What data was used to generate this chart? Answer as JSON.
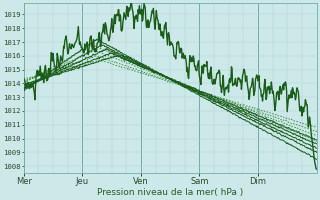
{
  "title": "",
  "xlabel": "Pression niveau de la mer( hPa )",
  "bg_color": "#cce8e8",
  "plot_bg_color": "#cce8e8",
  "grid_color_minor": "#aacccc",
  "grid_color_major": "#77aaaa",
  "line_color_dark": "#1a5c1a",
  "line_color_light": "#3a8a3a",
  "ylim": [
    1007.5,
    1019.8
  ],
  "yticks": [
    1008,
    1009,
    1010,
    1011,
    1012,
    1013,
    1014,
    1015,
    1016,
    1017,
    1018,
    1019
  ],
  "day_labels": [
    "Mer",
    "Jeu",
    "Ven",
    "Sam",
    "Dim"
  ],
  "day_positions": [
    0,
    24,
    48,
    72,
    96
  ],
  "total_hours": 120
}
